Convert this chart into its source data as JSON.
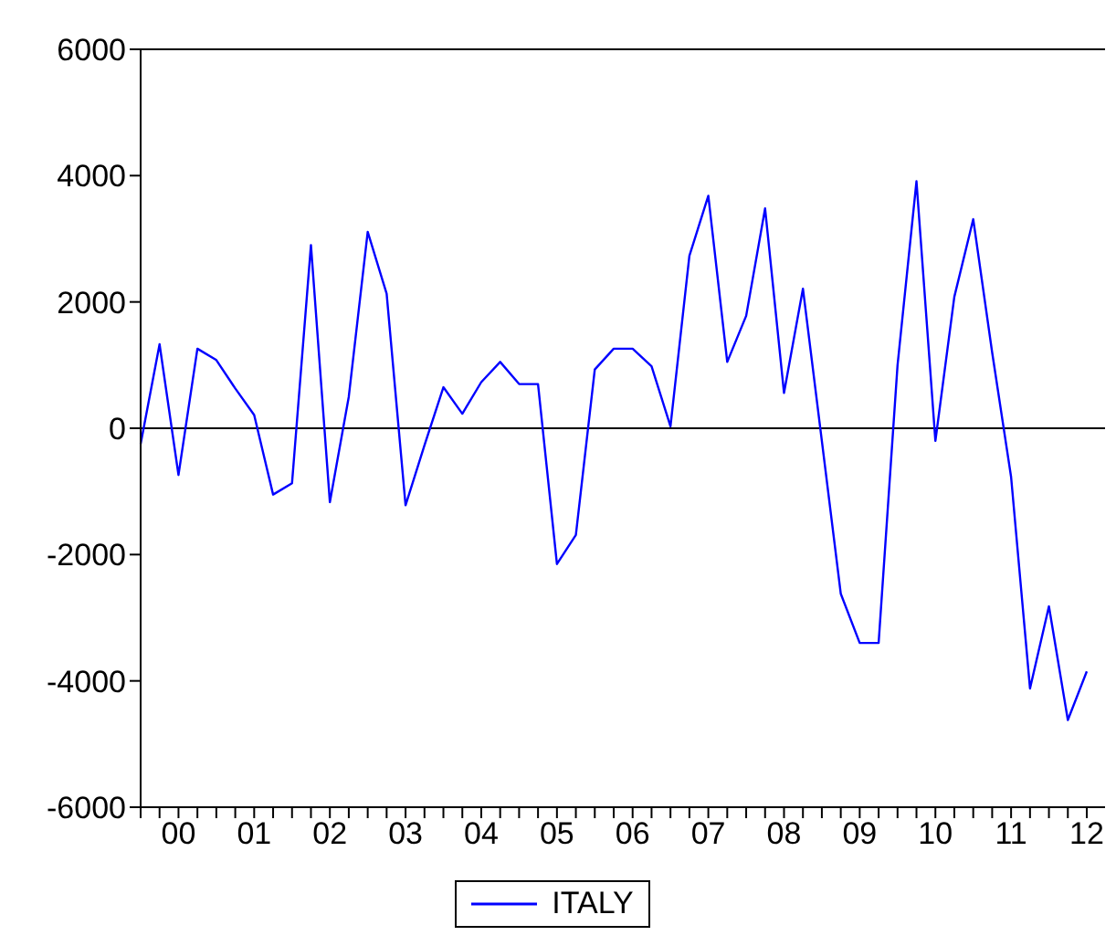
{
  "chart_data": {
    "type": "line",
    "categories": [
      null,
      null,
      "00",
      null,
      null,
      null,
      "01",
      null,
      null,
      null,
      "02",
      null,
      null,
      null,
      "03",
      null,
      null,
      null,
      "04",
      null,
      null,
      null,
      "05",
      null,
      null,
      null,
      "06",
      null,
      null,
      null,
      "07",
      null,
      null,
      null,
      "08",
      null,
      null,
      null,
      "09",
      null,
      null,
      null,
      "10",
      null,
      null,
      null,
      "11",
      null,
      null,
      null,
      "12"
    ],
    "series": [
      {
        "name": "ITALY",
        "color": "#0000ff",
        "values": [
          -250,
          1330,
          -740,
          1260,
          1080,
          630,
          210,
          -1050,
          -870,
          2900,
          -1170,
          500,
          3110,
          2130,
          -1220,
          -270,
          650,
          230,
          730,
          1050,
          700,
          700,
          -2150,
          -1690,
          930,
          1260,
          1260,
          980,
          30,
          2730,
          3680,
          1050,
          1780,
          3480,
          560,
          2210,
          -200,
          -2620,
          -3400,
          -3400,
          1000,
          3910,
          -200,
          2080,
          3310,
          1200,
          -770,
          -4120,
          -2820,
          -4620,
          -3850
        ]
      }
    ],
    "ylim": [
      -6000,
      6000
    ],
    "yticks": [
      -6000,
      -4000,
      -2000,
      0,
      2000,
      4000,
      6000
    ],
    "ref_lines": [
      {
        "axis": "y",
        "value": 0,
        "color": "#000000"
      }
    ],
    "grid": false,
    "legend": "bottom",
    "marker": "none",
    "line_style": "solid"
  }
}
